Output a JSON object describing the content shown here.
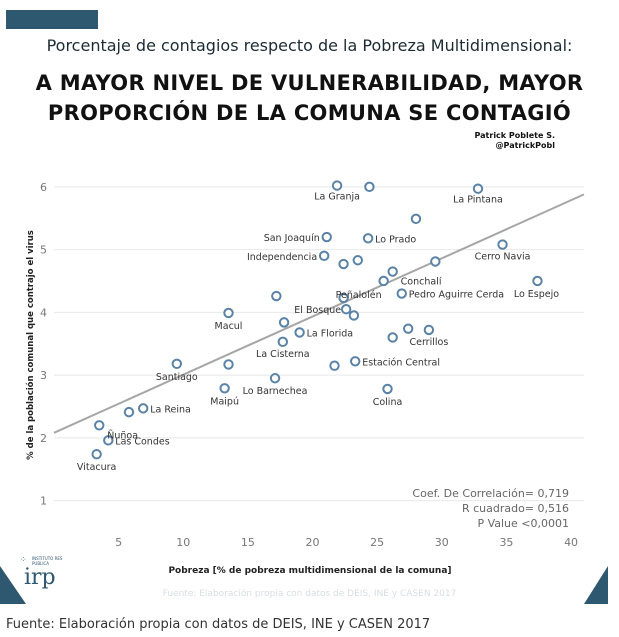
{
  "header": {
    "subtitle": "Porcentaje de contagios respecto de la Pobreza Multidimensional:",
    "headline_line1": "A MAYOR NIVEL DE VULNERABILIDAD, MAYOR",
    "headline_line2": "PROPORCIÓN DE LA COMUNA SE CONTAGIÓ",
    "author_name": "Patrick Poblete S.",
    "author_handle": "@PatrickPobl"
  },
  "stats": {
    "correlation": "Coef. De Correlación= 0,719",
    "r_squared": "R cuadrado= 0,516",
    "p_value": "P Value <0,0001"
  },
  "logo": {
    "small_text": "INSTITUTO RES PUBLICA",
    "text": "irp"
  },
  "source_inner": "Fuente: Elaboración propia con datos de DEIS, INE y CASEN 2017",
  "source_outer": "Fuente: Elaboración propia con datos de DEIS, INE y CASEN 2017",
  "colors": {
    "point_stroke": "#5a82a6",
    "trend_line": "#a6a6a6",
    "accent": "#2e5770",
    "gridline": "#e8e8e8"
  },
  "chart_data": {
    "type": "scatter",
    "xlabel": "Pobreza [% de pobreza multidimensional de la comuna]",
    "ylabel": "% de la población comunal que contrajo el virus",
    "xlim": [
      0,
      41
    ],
    "ylim": [
      0.5,
      6.3
    ],
    "xticks": [
      5,
      10,
      15,
      20,
      25,
      30,
      35,
      40
    ],
    "yticks": [
      1,
      2,
      3,
      4,
      5,
      6
    ],
    "grid": "horizontal",
    "trendline": {
      "x": [
        0,
        41
      ],
      "y": [
        2.08,
        5.88
      ]
    },
    "points": [
      {
        "x": 21.9,
        "y": 6.02,
        "label": "La Granja"
      },
      {
        "x": 24.4,
        "y": 6.0,
        "label": ""
      },
      {
        "x": 32.8,
        "y": 5.97,
        "label": "La Pintana"
      },
      {
        "x": 28.0,
        "y": 5.49,
        "label": ""
      },
      {
        "x": 21.1,
        "y": 5.2,
        "label": "San Joaquín"
      },
      {
        "x": 24.3,
        "y": 5.18,
        "label": "Lo Prado"
      },
      {
        "x": 34.7,
        "y": 5.08,
        "label": "Cerro Navia"
      },
      {
        "x": 20.9,
        "y": 4.9,
        "label": "Independencia"
      },
      {
        "x": 23.5,
        "y": 4.83,
        "label": ""
      },
      {
        "x": 22.4,
        "y": 4.77,
        "label": ""
      },
      {
        "x": 29.5,
        "y": 4.81,
        "label": ""
      },
      {
        "x": 26.2,
        "y": 4.65,
        "label": "Conchalí"
      },
      {
        "x": 37.4,
        "y": 4.5,
        "label": "Lo Espejo"
      },
      {
        "x": 25.5,
        "y": 4.5,
        "label": "Peñalolén"
      },
      {
        "x": 26.9,
        "y": 4.3,
        "label": "Pedro Aguirre Cerda"
      },
      {
        "x": 17.2,
        "y": 4.26,
        "label": ""
      },
      {
        "x": 22.4,
        "y": 4.23,
        "label": ""
      },
      {
        "x": 22.6,
        "y": 4.05,
        "label": "El Bosque"
      },
      {
        "x": 23.2,
        "y": 3.95,
        "label": ""
      },
      {
        "x": 13.5,
        "y": 3.99,
        "label": "Macul"
      },
      {
        "x": 17.8,
        "y": 3.84,
        "label": ""
      },
      {
        "x": 19.0,
        "y": 3.68,
        "label": "La Florida"
      },
      {
        "x": 27.4,
        "y": 3.74,
        "label": ""
      },
      {
        "x": 29.0,
        "y": 3.72,
        "label": "Cerrillos"
      },
      {
        "x": 26.2,
        "y": 3.6,
        "label": ""
      },
      {
        "x": 17.7,
        "y": 3.53,
        "label": "La Cisterna"
      },
      {
        "x": 9.5,
        "y": 3.18,
        "label": "Santiago"
      },
      {
        "x": 13.5,
        "y": 3.17,
        "label": ""
      },
      {
        "x": 23.3,
        "y": 3.22,
        "label": "Estación Central"
      },
      {
        "x": 21.7,
        "y": 3.15,
        "label": ""
      },
      {
        "x": 17.1,
        "y": 2.95,
        "label": "Lo Barnechea"
      },
      {
        "x": 13.2,
        "y": 2.79,
        "label": "Maipú"
      },
      {
        "x": 25.8,
        "y": 2.78,
        "label": "Colina"
      },
      {
        "x": 6.9,
        "y": 2.47,
        "label": "La Reina"
      },
      {
        "x": 5.8,
        "y": 2.41,
        "label": ""
      },
      {
        "x": 3.5,
        "y": 2.2,
        "label": "Ñuñoa"
      },
      {
        "x": 4.2,
        "y": 1.96,
        "label": "Las Condes"
      },
      {
        "x": 3.3,
        "y": 1.74,
        "label": "Vitacura"
      }
    ]
  }
}
